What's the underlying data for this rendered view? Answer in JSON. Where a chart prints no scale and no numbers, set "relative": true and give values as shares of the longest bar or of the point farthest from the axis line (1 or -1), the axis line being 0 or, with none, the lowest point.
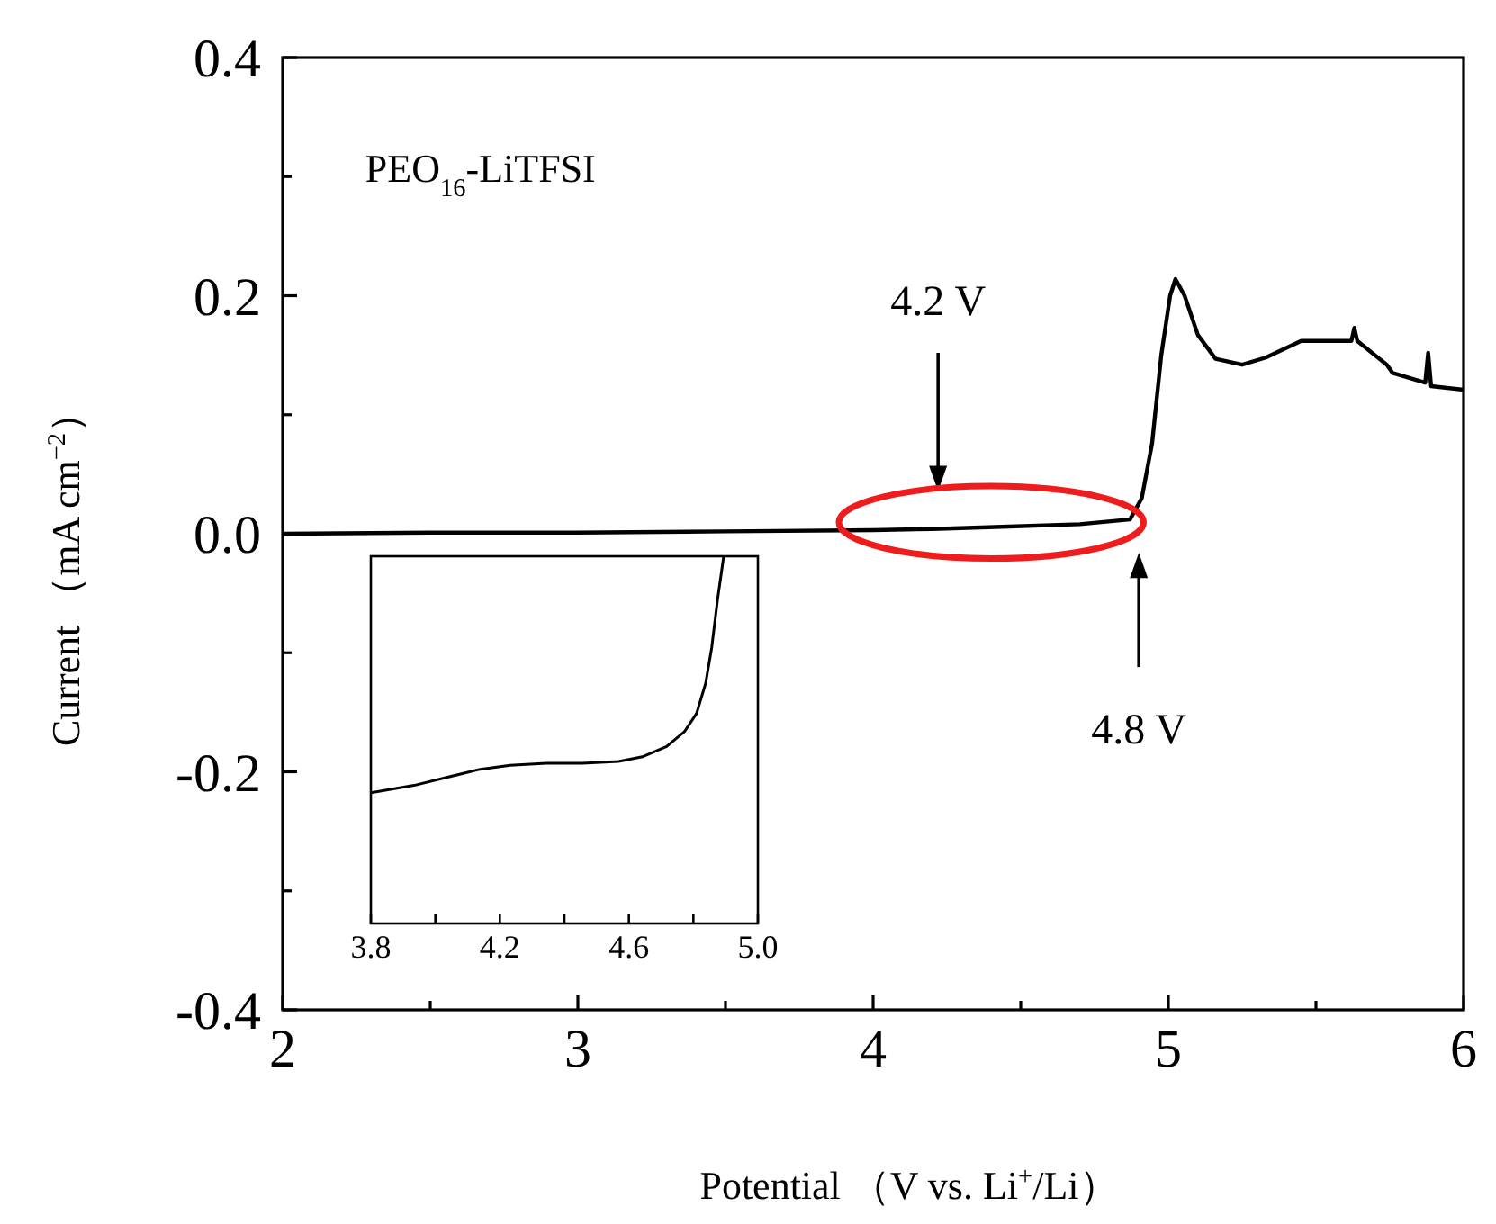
{
  "chart_data": [
    {
      "type": "line",
      "xlabel": "Potential （V vs. Li$^{+}$/Li）",
      "ylabel": "Current （mA cm$^{−2}$）",
      "xlim": [
        2,
        6
      ],
      "ylim": [
        -0.4,
        0.4
      ],
      "xticks": [
        2,
        {
          "value": 2.5,
          "label": null
        },
        3,
        {
          "value": 3.5,
          "label": null
        },
        4,
        {
          "value": 4.5,
          "label": null
        },
        5,
        {
          "value": 5.5,
          "label": null
        },
        6
      ],
      "yticks": [
        {
          "value": -0.4,
          "label": "-0.4"
        },
        {
          "value": -0.3,
          "label": null
        },
        {
          "value": -0.2,
          "label": "-0.2"
        },
        {
          "value": -0.1,
          "label": null
        },
        {
          "value": 0,
          "label": "0.0"
        },
        {
          "value": 0.1,
          "label": null
        },
        {
          "value": 0.2,
          "label": "0.2"
        },
        {
          "value": 0.3,
          "label": null
        },
        {
          "value": 0.4,
          "label": "0.4"
        }
      ],
      "grid": false,
      "line_style": "solid",
      "marker": "none",
      "annotations": [
        "PEO$_{16}$-LiTFSI",
        "4.2 V",
        "4.8 V"
      ],
      "series": [
        {
          "color": "#000000",
          "x": [
            2.0,
            2.5,
            3.0,
            3.5,
            4.0,
            4.2,
            4.46,
            4.7,
            4.87,
            4.91,
            4.945,
            4.976,
            5.006,
            5.024,
            5.055,
            5.1,
            5.16,
            5.25,
            5.33,
            5.45,
            5.62,
            5.63,
            5.64,
            5.74,
            5.76,
            5.87,
            5.88,
            5.89,
            6.0
          ],
          "values": [
            0.0,
            0.001,
            0.001,
            0.002,
            0.003,
            0.004,
            0.006,
            0.008,
            0.012,
            0.03,
            0.076,
            0.15,
            0.2,
            0.214,
            0.2,
            0.167,
            0.147,
            0.142,
            0.148,
            0.162,
            0.162,
            0.173,
            0.162,
            0.142,
            0.135,
            0.127,
            0.152,
            0.124,
            0.121
          ]
        }
      ]
    },
    {
      "type": "line",
      "relative": true,
      "xlim": [
        3.8,
        5.0
      ],
      "tick_labels": "x",
      "xticks": [
        {
          "value": 3.8,
          "label": "3.8"
        },
        {
          "value": 4.0,
          "label": null
        },
        {
          "value": 4.2,
          "label": "4.2"
        },
        {
          "value": 4.4,
          "label": null
        },
        {
          "value": 4.6,
          "label": "4.6"
        },
        {
          "value": 4.8,
          "label": null
        },
        {
          "value": 5.0,
          "label": "5.0"
        }
      ],
      "grid": false,
      "line_style": "solid",
      "marker": "none",
      "series": [
        {
          "color": "#000000",
          "x": [
            3.8,
            3.934,
            4.046,
            4.139,
            4.232,
            4.344,
            4.456,
            4.568,
            4.642,
            4.717,
            4.773,
            4.81,
            4.838,
            4.857,
            4.875,
            4.894
          ],
          "values": [
            0.356,
            0.376,
            0.4,
            0.42,
            0.431,
            0.436,
            0.436,
            0.441,
            0.454,
            0.482,
            0.523,
            0.572,
            0.654,
            0.752,
            0.882,
            1.0
          ]
        }
      ]
    }
  ]
}
